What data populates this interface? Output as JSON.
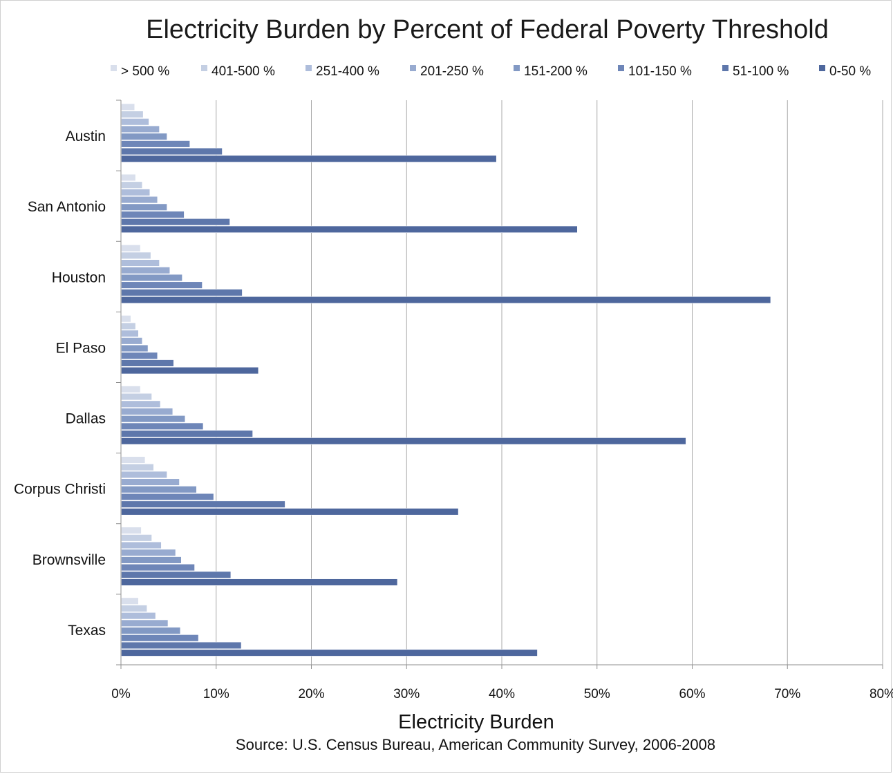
{
  "chart_data": {
    "type": "bar",
    "orientation": "horizontal",
    "title": "Electricity Burden by Percent of Federal Poverty Threshold",
    "xlabel": "Electricity Burden",
    "ylabel": "",
    "source": "Source: U.S. Census Bureau, American Community Survey, 2006-2008",
    "categories": [
      "Austin",
      "San Antonio",
      "Houston",
      "El Paso",
      "Dallas",
      "Corpus Christi",
      "Brownsville",
      "Texas"
    ],
    "xlim": [
      0,
      80
    ],
    "x_ticks": [
      "0%",
      "10%",
      "20%",
      "30%",
      "40%",
      "50%",
      "60%",
      "70%",
      "80%"
    ],
    "grid": "vertical",
    "legend_position": "top",
    "series": [
      {
        "name": "> 500 %",
        "color": "#d9dfec",
        "values": [
          1.4,
          1.5,
          2.0,
          1.0,
          2.0,
          2.5,
          2.1,
          1.8
        ]
      },
      {
        "name": "401-500 %",
        "color": "#c4cfe3",
        "values": [
          2.3,
          2.2,
          3.1,
          1.5,
          3.2,
          3.4,
          3.2,
          2.7
        ]
      },
      {
        "name": "251-400 %",
        "color": "#aebddb",
        "values": [
          2.9,
          3.0,
          4.0,
          1.8,
          4.1,
          4.8,
          4.2,
          3.6
        ]
      },
      {
        "name": "201-250 %",
        "color": "#98abd0",
        "values": [
          4.0,
          3.8,
          5.1,
          2.2,
          5.4,
          6.1,
          5.7,
          4.9
        ]
      },
      {
        "name": "151-200 %",
        "color": "#8299c4",
        "values": [
          4.8,
          4.8,
          6.4,
          2.8,
          6.7,
          7.9,
          6.3,
          6.2
        ]
      },
      {
        "name": "101-150 %",
        "color": "#6e86b8",
        "values": [
          7.2,
          6.6,
          8.5,
          3.8,
          8.6,
          9.7,
          7.7,
          8.1
        ]
      },
      {
        "name": "51-100 %",
        "color": "#5e77ab",
        "values": [
          10.6,
          11.4,
          12.7,
          5.5,
          13.8,
          17.2,
          11.5,
          12.6
        ]
      },
      {
        "name": "0-50 %",
        "color": "#4e679d",
        "values": [
          39.4,
          47.9,
          68.2,
          14.4,
          59.3,
          35.4,
          29.0,
          43.7
        ]
      }
    ]
  }
}
